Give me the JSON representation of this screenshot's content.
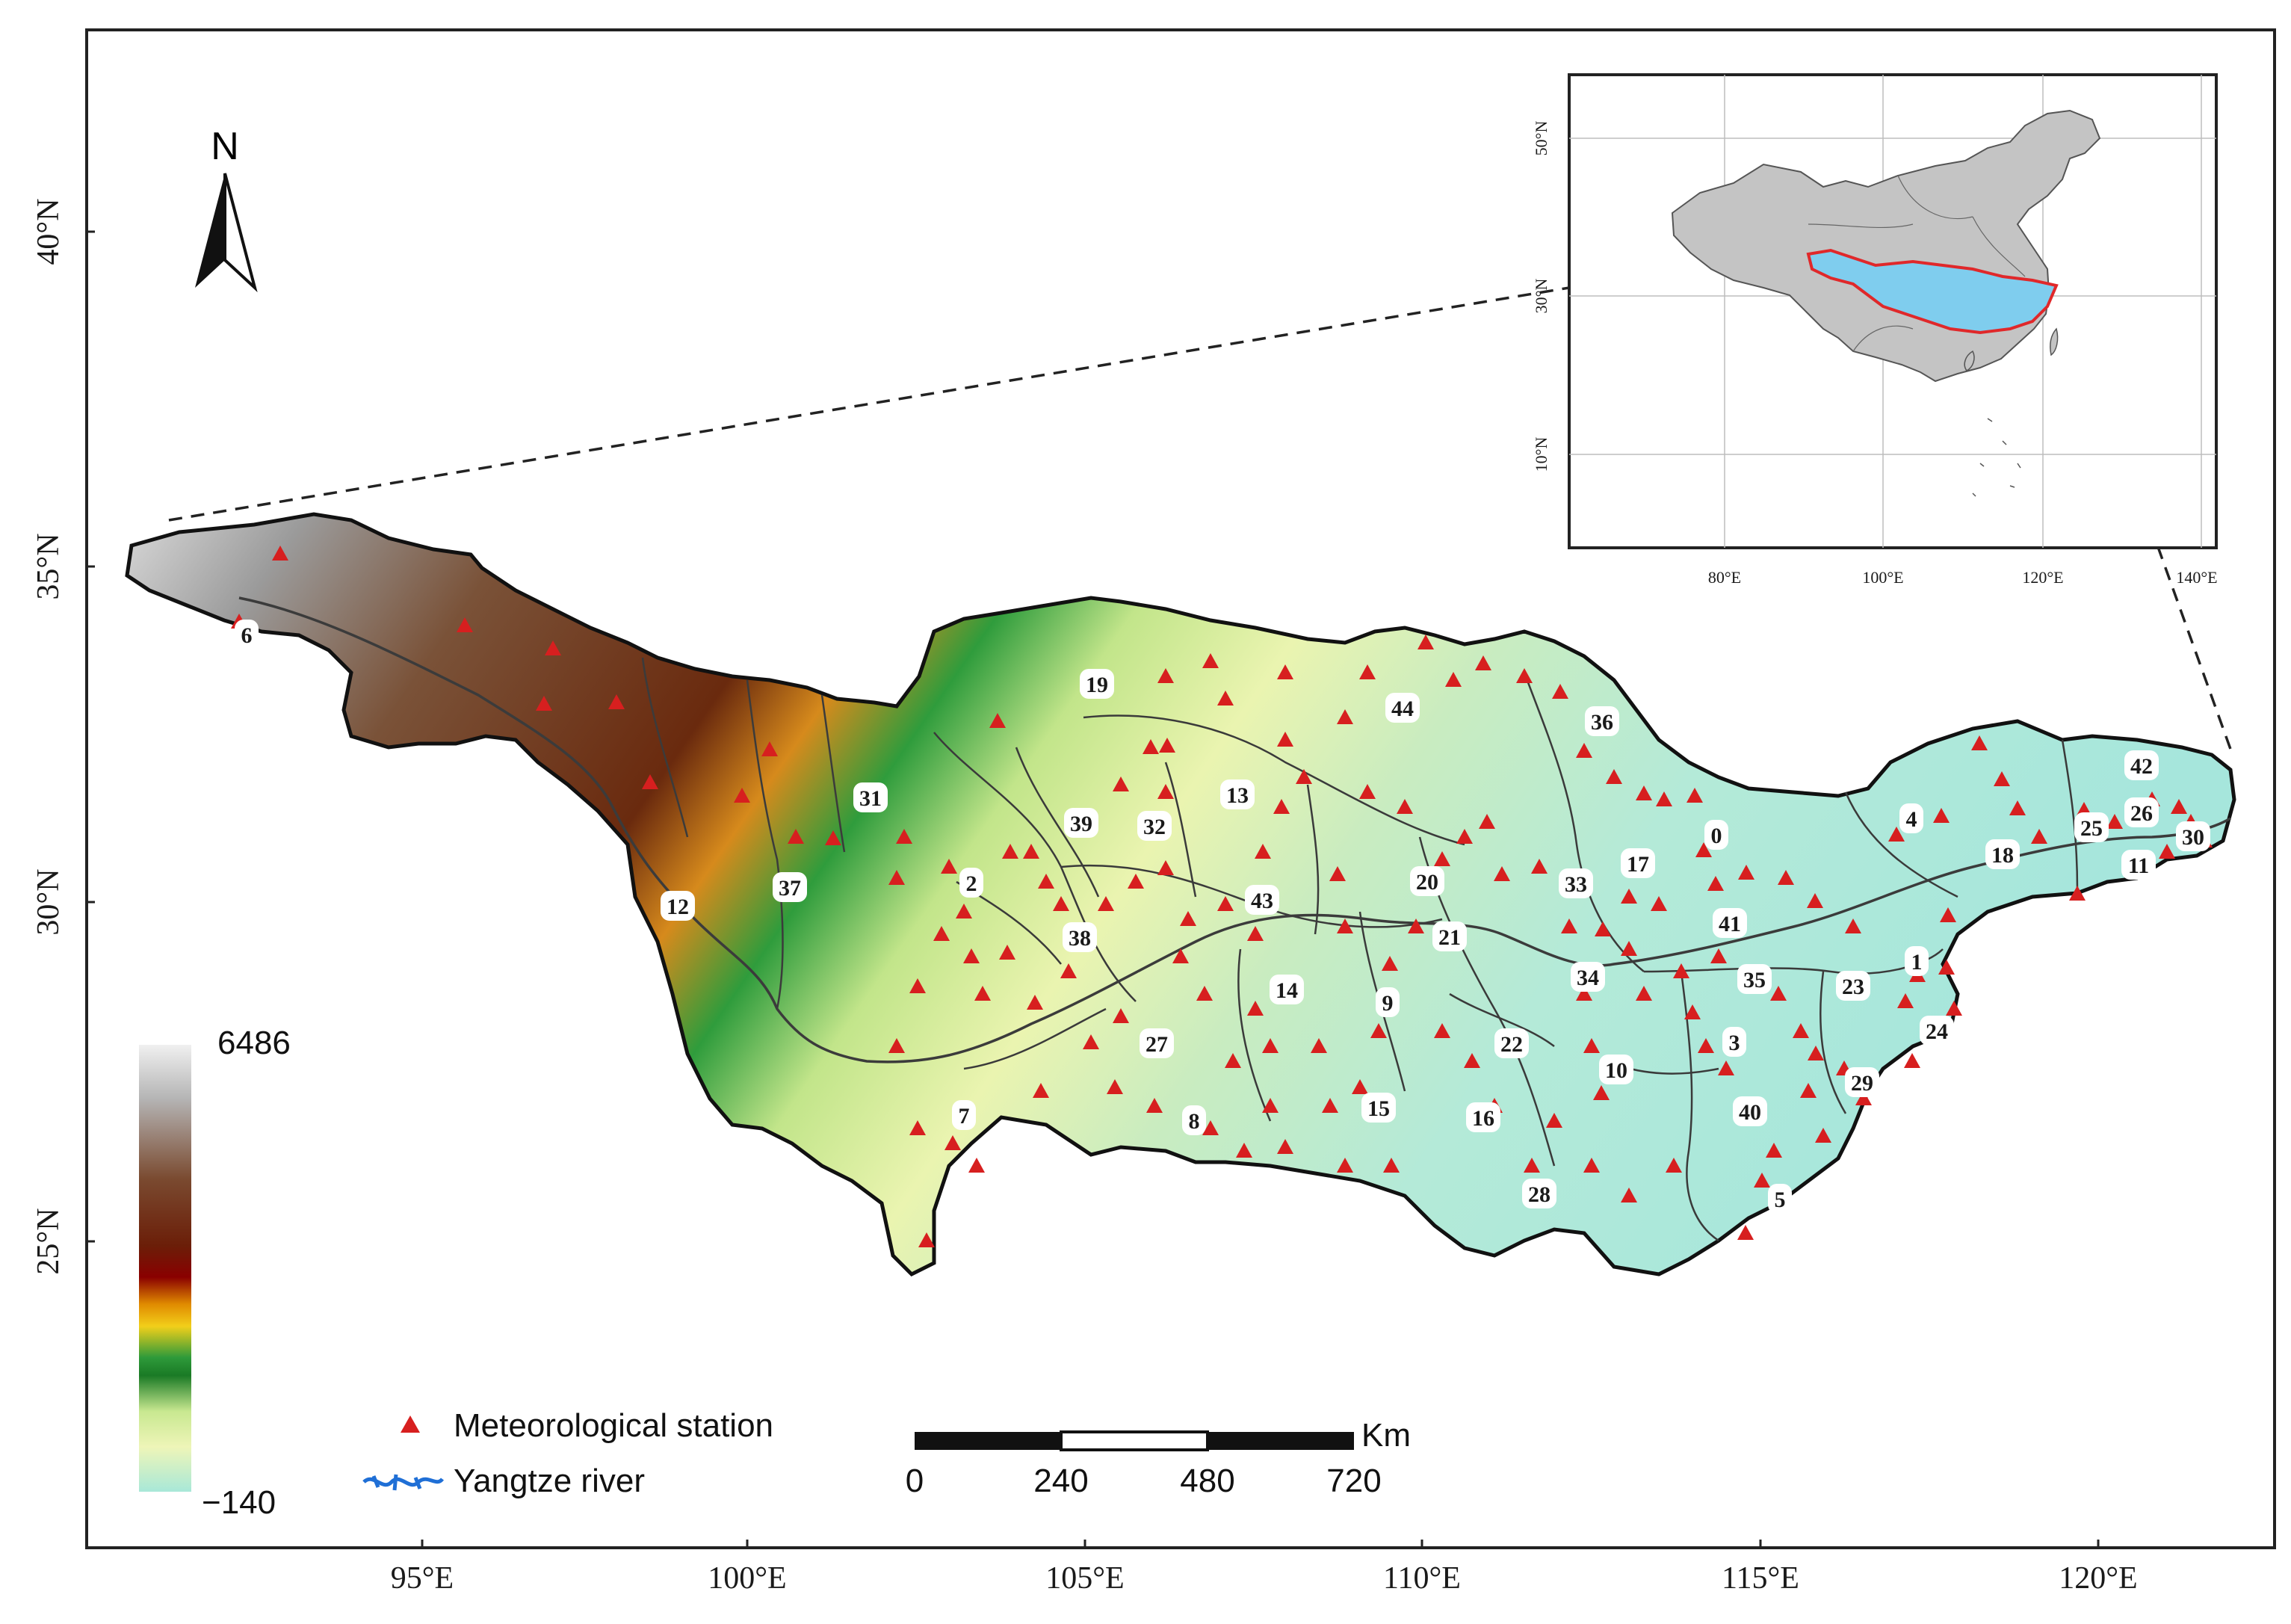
{
  "map": {
    "x_ticks": [
      "95°E",
      "100°E",
      "105°E",
      "110°E",
      "115°E",
      "120°E"
    ],
    "y_ticks": [
      "40°N",
      "35°N",
      "30°N",
      "25°N"
    ],
    "north_label": "N"
  },
  "elevation_legend": {
    "max": "6486",
    "min": "−140",
    "colors": [
      "#f0f0f0",
      "#c8c8c8",
      "#8c6a55",
      "#6b2a10",
      "#8a0000",
      "#e08a00",
      "#f2cf1a",
      "#2e9a3a",
      "#1a7a25",
      "#c8e890",
      "#eef5b8",
      "#a8e8d8"
    ]
  },
  "legend": {
    "station_label": "Meteorological station",
    "river_label": "Yangtze river",
    "station_color": "#d71f1f",
    "river_color": "#1f6fd6"
  },
  "scale_bar": {
    "unit": "Km",
    "labels": [
      "0",
      "240",
      "480",
      "720"
    ]
  },
  "inset": {
    "x_ticks": [
      "80°E",
      "100°E",
      "120°E",
      "140°E"
    ],
    "y_ticks": [
      "50°N",
      "30°N",
      "10°N"
    ],
    "china_color": "#c4c4c4",
    "basin_fill": "#7fcdee",
    "basin_outline": "#e0282a"
  },
  "subbasins": [
    "0",
    "1",
    "2",
    "3",
    "4",
    "5",
    "6",
    "7",
    "8",
    "9",
    "10",
    "11",
    "12",
    "13",
    "14",
    "15",
    "16",
    "17",
    "18",
    "19",
    "20",
    "21",
    "22",
    "23",
    "24",
    "25",
    "26",
    "27",
    "28",
    "29",
    "30",
    "31",
    "32",
    "33",
    "34",
    "35",
    "36",
    "37",
    "38",
    "39",
    "40",
    "41",
    "42",
    "43",
    "44"
  ]
}
